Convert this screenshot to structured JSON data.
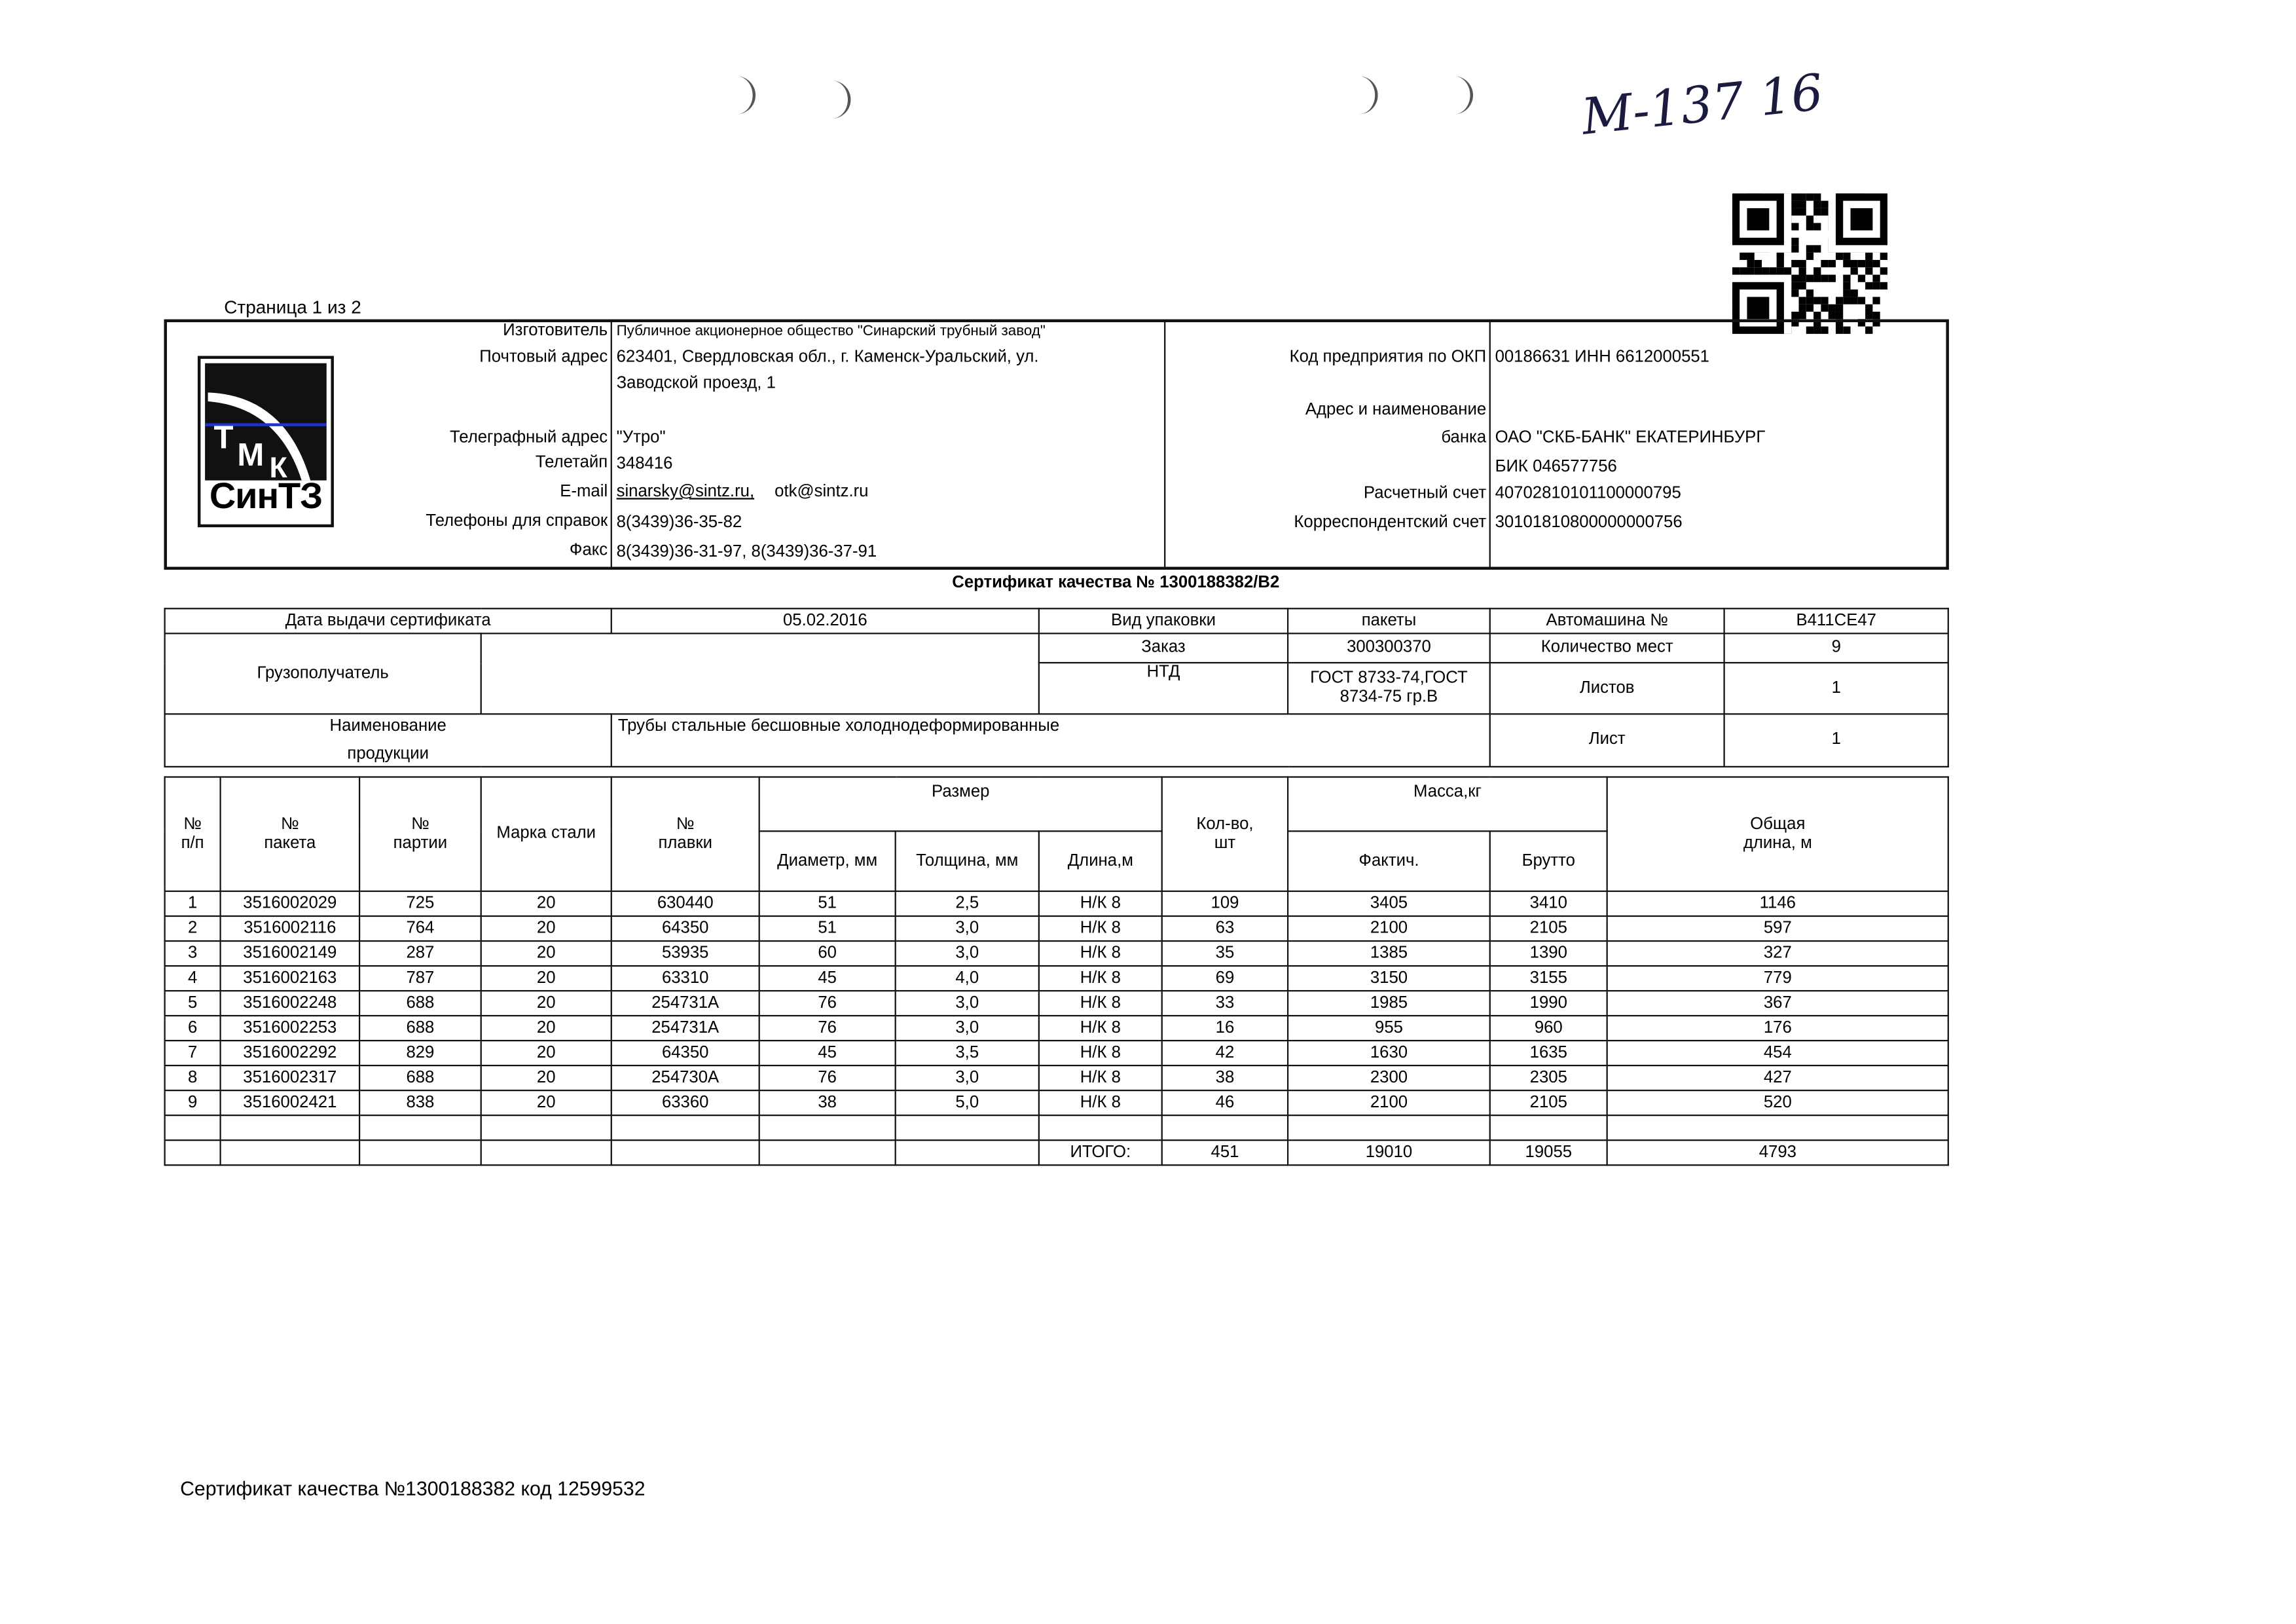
{
  "page_indicator": "Страница 1 из 2",
  "handwritten_note": "М-137 16",
  "logo": {
    "top": "ТМК",
    "name": "СинТЗ"
  },
  "manufacturer": {
    "labels": {
      "manufacturer": "Изготовитель",
      "postal": "Почтовый адрес",
      "telegraph": "Телеграфный адрес",
      "teletype": "Телетайп",
      "email": "E-mail",
      "phones": "Телефоны для справок",
      "fax": "Факс"
    },
    "manufacturer": "Публичное акционерное общество \"Синарский трубный завод\"",
    "postal_1": "623401, Свердловская обл., г. Каменск-Уральский, ул.",
    "postal_2": "Заводской проезд, 1",
    "telegraph": "\"Утро\"",
    "teletype": "348416",
    "email_1": "sinarsky@sintz.ru,",
    "email_2": "otk@sintz.ru",
    "phones": "8(3439)36-35-82",
    "fax": "8(3439)36-31-97, 8(3439)36-37-91"
  },
  "bank": {
    "labels": {
      "okp": "Код предприятия по ОКП",
      "bank_1": "Адрес и наименование",
      "bank_2": "банка",
      "account": "Расчетный счет",
      "corr": "Корреспондентский счет"
    },
    "okp": "00186631 ИНН 6612000551",
    "bank": "ОАО \"СКБ-БАНК\" ЕКАТЕРИНБУРГ",
    "bik": "БИК 046577756",
    "account": "40702810101100000795",
    "corr": "30101810800000000756"
  },
  "certificate_title": "Сертификат качества №  1300188382/В2",
  "info": {
    "issue_date_label": "Дата выдачи сертификата",
    "issue_date": "05.02.2016",
    "packaging_label": "Вид упаковки",
    "packaging": "пакеты",
    "truck_label": "Автомашина №",
    "truck": "В411СЕ47",
    "consignee_label": "Грузополучатель",
    "consignee": "",
    "order_label": "Заказ",
    "order": "300300370",
    "places_label": "Количество мест",
    "places": "9",
    "ntd_label": "НТД",
    "ntd_1": "ГОСТ 8733-74,ГОСТ",
    "ntd_2": "8734-75 гр.В",
    "sheets_label": "Листов",
    "sheets": "1",
    "product_label_1": "Наименование",
    "product_label_2": "продукции",
    "product": "Трубы стальные бесшовные холоднодеформированные",
    "sheet_label": "Лист",
    "sheet": "1"
  },
  "main_table": {
    "headers": {
      "num": "№\nп/п",
      "package": "№\nпакета",
      "batch": "№\nпартии",
      "steel": "Марка стали",
      "heat": "№\nплавки",
      "size": "Размер",
      "diameter": "Диаметр, мм",
      "thickness": "Толщина, мм",
      "length": "Длина,м",
      "qty": "Кол-во,\nшт",
      "mass": "Масса,кг",
      "actual": "Фактич.",
      "gross": "Брутто",
      "total_length": "Общая\nдлина, м"
    },
    "rows": [
      [
        "1",
        "3516002029",
        "725",
        "20",
        "630440",
        "51",
        "2,5",
        "Н/К 8",
        "109",
        "3405",
        "3410",
        "1146"
      ],
      [
        "2",
        "3516002116",
        "764",
        "20",
        "64350",
        "51",
        "3,0",
        "Н/К 8",
        "63",
        "2100",
        "2105",
        "597"
      ],
      [
        "3",
        "3516002149",
        "287",
        "20",
        "53935",
        "60",
        "3,0",
        "Н/К 8",
        "35",
        "1385",
        "1390",
        "327"
      ],
      [
        "4",
        "3516002163",
        "787",
        "20",
        "63310",
        "45",
        "4,0",
        "Н/К 8",
        "69",
        "3150",
        "3155",
        "779"
      ],
      [
        "5",
        "3516002248",
        "688",
        "20",
        "254731А",
        "76",
        "3,0",
        "Н/К 8",
        "33",
        "1985",
        "1990",
        "367"
      ],
      [
        "6",
        "3516002253",
        "688",
        "20",
        "254731А",
        "76",
        "3,0",
        "Н/К 8",
        "16",
        "955",
        "960",
        "176"
      ],
      [
        "7",
        "3516002292",
        "829",
        "20",
        "64350",
        "45",
        "3,5",
        "Н/К 8",
        "42",
        "1630",
        "1635",
        "454"
      ],
      [
        "8",
        "3516002317",
        "688",
        "20",
        "254730А",
        "76",
        "3,0",
        "Н/К 8",
        "38",
        "2300",
        "2305",
        "427"
      ],
      [
        "9",
        "3516002421",
        "838",
        "20",
        "63360",
        "38",
        "5,0",
        "Н/К 8",
        "46",
        "2100",
        "2105",
        "520"
      ]
    ],
    "total": {
      "label": "ИТОГО:",
      "qty": "451",
      "actual": "19010",
      "gross": "19055",
      "total_length": "4793"
    }
  },
  "footer": "Сертификат качества №1300188382 код 12599532"
}
